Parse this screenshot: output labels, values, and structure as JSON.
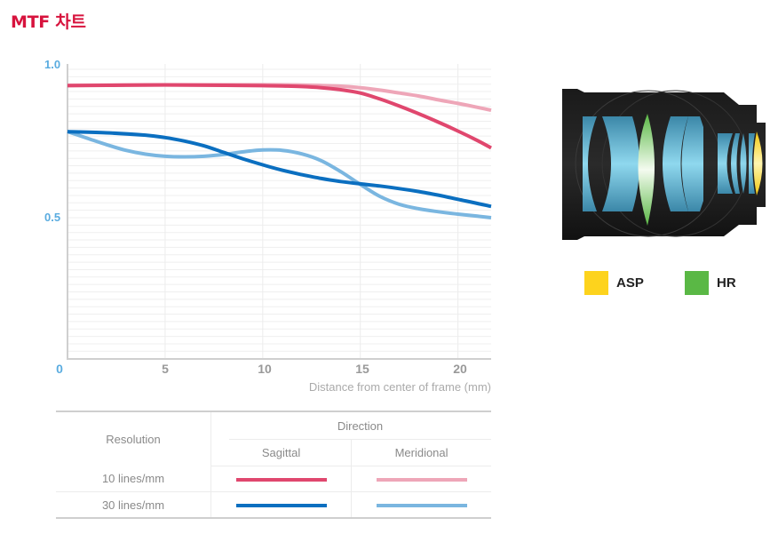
{
  "page": {
    "title": "MTF 차트"
  },
  "chart_data": {
    "type": "line",
    "title": "MTF 차트",
    "xlabel": "Distance from center of frame (mm)",
    "ylabel": "",
    "xlim": [
      0,
      21.7
    ],
    "ylim": [
      0,
      1.0
    ],
    "x_ticks": [
      "0",
      "5",
      "10",
      "15",
      "20"
    ],
    "y_ticks": [
      "0.5",
      "1.0"
    ],
    "grid": true,
    "series": [
      {
        "name": "10 lines/mm Sagittal",
        "color": "#e0476e",
        "x": [
          0,
          2,
          4,
          6,
          8,
          10,
          11,
          12,
          13,
          14,
          15,
          16,
          17,
          18,
          19,
          20,
          21,
          21.7
        ],
        "y": [
          0.945,
          0.946,
          0.947,
          0.947,
          0.946,
          0.945,
          0.944,
          0.942,
          0.938,
          0.931,
          0.92,
          0.9,
          0.876,
          0.85,
          0.822,
          0.792,
          0.76,
          0.735
        ]
      },
      {
        "name": "10 lines/mm Meridional",
        "color": "#eea6b8",
        "x": [
          0,
          2,
          4,
          6,
          8,
          10,
          12,
          14,
          15,
          16,
          17,
          18,
          19,
          20,
          21,
          21.7
        ],
        "y": [
          0.946,
          0.947,
          0.948,
          0.948,
          0.948,
          0.948,
          0.947,
          0.943,
          0.938,
          0.93,
          0.92,
          0.91,
          0.897,
          0.885,
          0.872,
          0.862
        ]
      },
      {
        "name": "30 lines/mm Sagittal",
        "color": "#0b6fc0",
        "x": [
          0,
          2,
          4,
          5,
          6,
          7,
          8,
          9,
          10,
          11,
          12,
          13,
          14,
          15,
          16,
          17,
          18,
          19,
          20,
          21,
          21.7
        ],
        "y": [
          0.79,
          0.786,
          0.778,
          0.77,
          0.758,
          0.742,
          0.72,
          0.698,
          0.678,
          0.66,
          0.645,
          0.632,
          0.622,
          0.614,
          0.607,
          0.598,
          0.588,
          0.576,
          0.562,
          0.548,
          0.538
        ]
      },
      {
        "name": "30 lines/mm Meridional",
        "color": "#7ab6e0",
        "x": [
          0,
          1,
          2,
          3,
          4,
          5,
          6,
          7,
          8,
          9,
          10,
          11,
          12,
          13,
          14,
          15,
          16,
          17,
          18,
          19,
          20,
          21,
          21.7
        ],
        "y": [
          0.79,
          0.768,
          0.746,
          0.727,
          0.714,
          0.707,
          0.705,
          0.707,
          0.713,
          0.722,
          0.728,
          0.727,
          0.715,
          0.692,
          0.655,
          0.612,
          0.572,
          0.545,
          0.53,
          0.52,
          0.512,
          0.505,
          0.5
        ]
      }
    ]
  },
  "legend_table": {
    "resolution_header": "Resolution",
    "direction_header": "Direction",
    "sagittal_header": "Sagittal",
    "meridional_header": "Meridional",
    "rows": [
      {
        "label": "10 lines/mm",
        "sagittal_color": "#e0476e",
        "meridional_color": "#eea6b8"
      },
      {
        "label": "30 lines/mm",
        "sagittal_color": "#0b6fc0",
        "meridional_color": "#7ab6e0"
      }
    ]
  },
  "lens_legend": [
    {
      "label": "ASP",
      "color": "#fdd31d"
    },
    {
      "label": "HR",
      "color": "#5ab845"
    }
  ]
}
